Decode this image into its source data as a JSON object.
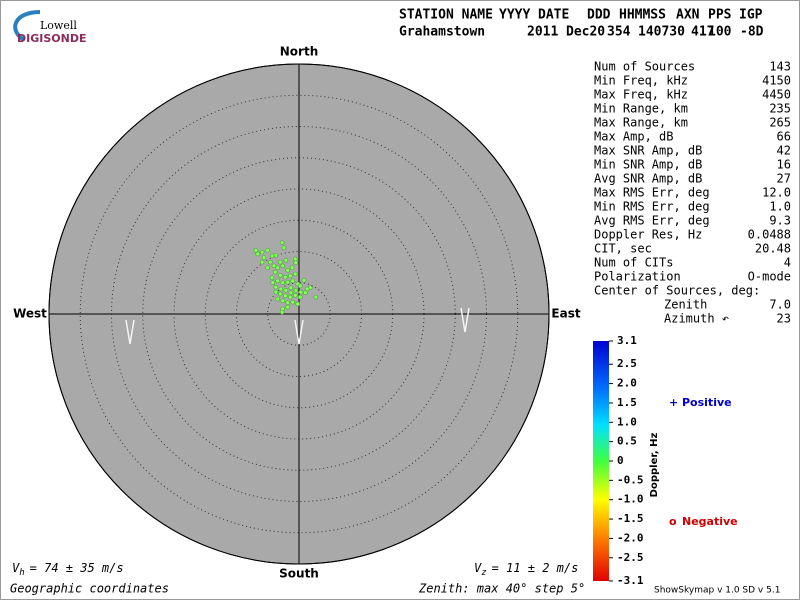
{
  "logo": {
    "top": "Lowell",
    "bottom": "DIGISONDE"
  },
  "header": {
    "labels": [
      "STATION NAME",
      "YYYY",
      "DATE",
      "DDD",
      "HHMMSS",
      "AXN",
      "PPS",
      "IGP"
    ],
    "values": [
      "Grahamstown",
      "2011",
      "Dec20",
      "354",
      "140730",
      "417",
      "100",
      "-8D"
    ]
  },
  "chart_data": {
    "type": "scatter",
    "compass": {
      "north": "North",
      "south": "South",
      "east": "East",
      "west": "West"
    },
    "rlim": [
      0,
      40
    ],
    "rticks": [
      5,
      10,
      15,
      20,
      25,
      30,
      35,
      40
    ],
    "color": "#86ff5c",
    "x": [
      -2.7,
      -6.9,
      -5.9,
      -5.0,
      -4.3,
      -5.6,
      -3.7,
      -3.0,
      -2.1,
      -0.6,
      -4.6,
      -4.0,
      -3.4,
      -2.6,
      -1.8,
      -1.1,
      -3.8,
      -3.0,
      -2.2,
      -1.4,
      -0.6,
      -4.3,
      -3.4,
      -2.6,
      -1.8,
      -1.0,
      -0.2,
      -3.7,
      -2.9,
      -2.1,
      -1.3,
      -0.5,
      0.3,
      -3.0,
      -2.2,
      -1.4,
      -0.6,
      0.2,
      1.0,
      1.8,
      2.7,
      -2.6,
      -1.8,
      -1.0,
      -0.2,
      -3.4,
      -2.6,
      -1.8,
      0.2,
      -5.0,
      -5.9,
      -6.6,
      -2.4,
      0.8,
      1.3,
      -0.5,
      -1.3,
      -3.7,
      -4.2,
      -2.7
    ],
    "values": [
      11.4,
      10.2,
      9.9,
      10.2,
      9.3,
      9.0,
      9.4,
      8.3,
      8.6,
      8.8,
      8.3,
      7.7,
      7.4,
      7.7,
      7.0,
      7.4,
      6.7,
      6.2,
      5.9,
      6.1,
      6.4,
      5.8,
      5.3,
      5.0,
      5.1,
      5.3,
      4.8,
      4.3,
      4.0,
      3.8,
      4.2,
      3.8,
      3.5,
      3.2,
      2.9,
      2.7,
      3.0,
      2.7,
      3.4,
      4.2,
      2.7,
      2.1,
      1.8,
      1.9,
      1.6,
      2.4,
      0.8,
      1.1,
      4.5,
      7.4,
      8.3,
      9.6,
      10.6,
      5.4,
      4.0,
      8.2,
      3.4,
      3.5,
      5.0,
      0.3
    ]
  },
  "stats": [
    [
      "Num of Sources",
      "143"
    ],
    [
      "Min Freq, kHz",
      "4150"
    ],
    [
      "Max Freq, kHz",
      "4450"
    ],
    [
      "Min Range, km",
      "235"
    ],
    [
      "Max Range, km",
      "265"
    ],
    [
      "Max Amp, dB",
      "66"
    ],
    [
      "Max SNR Amp, dB",
      "42"
    ],
    [
      "Min SNR Amp, dB",
      "16"
    ],
    [
      "Avg SNR Amp, dB",
      "27"
    ],
    [
      "Max RMS Err, deg",
      "12.0"
    ],
    [
      "Min RMS Err, deg",
      "1.0"
    ],
    [
      "Avg RMS Err, deg",
      "9.3"
    ],
    [
      "Doppler Res, Hz",
      "0.0488"
    ],
    [
      "CIT, sec",
      "20.48"
    ],
    [
      "Num of CITs",
      "4"
    ],
    [
      "Polarization",
      "O-mode"
    ]
  ],
  "center_of_sources": {
    "title": "Center of Sources, deg:",
    "rows": [
      [
        "Zenith",
        "7.0"
      ],
      [
        "Azimuth ↶",
        "23"
      ]
    ]
  },
  "colorbar": {
    "label": "Doppler, Hz",
    "lim": [
      -3.1,
      3.1
    ],
    "ticks": [
      3.1,
      2.5,
      {
        "value": 2,
        "label": "2.0"
      },
      1.5,
      {
        "value": 1,
        "label": "1.0"
      },
      0.5,
      0,
      -0.5,
      {
        "value": -1,
        "label": "-1.0"
      },
      -1.5,
      {
        "value": -2,
        "label": "-2.0"
      },
      -2.5,
      -3.1
    ]
  },
  "legend": [
    {
      "symbol": "+",
      "name": "Positive",
      "color": "#0000c8"
    },
    {
      "symbol": "o",
      "name": "Negative",
      "color": "#d00000"
    }
  ],
  "footer": {
    "vh": {
      "symbol": "V",
      "sub": "h",
      "text": "= 74 ± 35 m/s"
    },
    "vz": {
      "symbol": "V",
      "sub": "z",
      "text": "= 11 ± 2 m/s"
    },
    "coords": "Geographic coordinates",
    "zenith": "Zenith: max 40°  step 5°",
    "version": "ShowSkymap v 1.0  SD v 5.1"
  }
}
